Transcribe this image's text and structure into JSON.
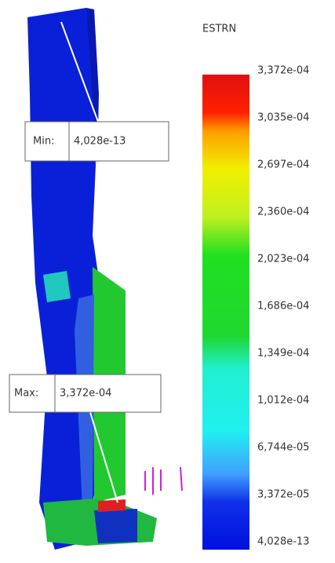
{
  "legend": {
    "title": "ESTRN",
    "ticks": [
      "3,372e-04",
      "3,035e-04",
      "2,697e-04",
      "2,360e-04",
      "2,023e-04",
      "1,686e-04",
      "1,349e-04",
      "1,012e-04",
      "6,744e-05",
      "3,372e-05",
      "4,028e-13"
    ]
  },
  "min_probe": {
    "label": "Min:",
    "value": "4,028e-13"
  },
  "max_probe": {
    "label": "Max:",
    "value": "3,372e-04"
  }
}
